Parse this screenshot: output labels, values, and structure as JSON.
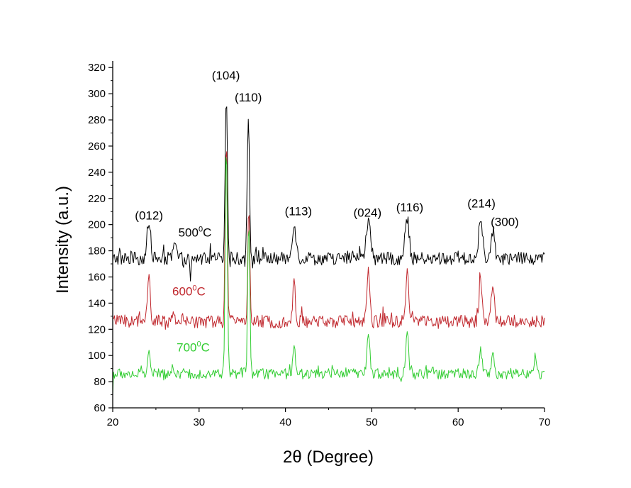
{
  "chart_data": {
    "type": "line",
    "title": "",
    "xlabel": "2θ (Degree)",
    "ylabel": "Intensity (a.u.)",
    "xlim": [
      20,
      70
    ],
    "ylim": [
      60,
      325
    ],
    "xticks": [
      20,
      30,
      40,
      50,
      60,
      70
    ],
    "yticks": [
      60,
      80,
      100,
      120,
      140,
      160,
      180,
      200,
      220,
      240,
      260,
      280,
      300,
      320
    ],
    "grid": false,
    "legend": "none",
    "peak_annotations": [
      {
        "text": "(012)",
        "x": 24.2,
        "y": 204
      },
      {
        "text": "(104)",
        "x": 33.1,
        "y": 311
      },
      {
        "text": "(110)",
        "x": 35.7,
        "y": 294
      },
      {
        "text": "(113)",
        "x": 41.5,
        "y": 207
      },
      {
        "text": "(024)",
        "x": 49.5,
        "y": 206
      },
      {
        "text": "(116)",
        "x": 54.4,
        "y": 210
      },
      {
        "text": "(214)",
        "x": 62.7,
        "y": 213
      },
      {
        "text": "(300)",
        "x": 65.4,
        "y": 199
      }
    ],
    "series": [
      {
        "name": "500⁰C",
        "label_base": "500",
        "label_sup": "0",
        "label_unit": "C",
        "label_pos": {
          "x": 27.6,
          "y": 191
        },
        "color": "#000000",
        "baseline": 174,
        "noise": 5,
        "start": [
          20,
          172
        ],
        "peaks": [
          {
            "x": 24.2,
            "h": 24,
            "w": 0.22
          },
          {
            "x": 27.2,
            "h": 11,
            "w": 0.18
          },
          {
            "x": 33.15,
            "h": 126,
            "w": 0.13
          },
          {
            "x": 35.7,
            "h": 111,
            "w": 0.13
          },
          {
            "x": 41.0,
            "h": 27,
            "w": 0.22
          },
          {
            "x": 49.6,
            "h": 28,
            "w": 0.25
          },
          {
            "x": 54.1,
            "h": 31,
            "w": 0.22
          },
          {
            "x": 62.6,
            "h": 30,
            "w": 0.22
          },
          {
            "x": 64.0,
            "h": 22,
            "w": 0.22
          },
          {
            "x": 29.0,
            "h": -17,
            "w": 0.08
          }
        ]
      },
      {
        "name": "600⁰C",
        "label_base": "600",
        "label_sup": "0",
        "label_unit": "C",
        "label_pos": {
          "x": 26.9,
          "y": 146
        },
        "color": "#c0272d",
        "baseline": 126,
        "noise": 5,
        "start": [
          20,
          128
        ],
        "peaks": [
          {
            "x": 24.2,
            "h": 40,
            "w": 0.14
          },
          {
            "x": 33.15,
            "h": 140,
            "w": 0.12
          },
          {
            "x": 35.75,
            "h": 83,
            "w": 0.12
          },
          {
            "x": 41.0,
            "h": 31,
            "w": 0.14
          },
          {
            "x": 49.6,
            "h": 43,
            "w": 0.16
          },
          {
            "x": 54.1,
            "h": 41,
            "w": 0.16
          },
          {
            "x": 62.6,
            "h": 34,
            "w": 0.16
          },
          {
            "x": 64.0,
            "h": 29,
            "w": 0.18
          }
        ]
      },
      {
        "name": "700⁰C",
        "label_base": "700",
        "label_sup": "0",
        "label_unit": "C",
        "label_pos": {
          "x": 27.4,
          "y": 103
        },
        "color": "#32cd32",
        "baseline": 86,
        "noise": 4,
        "start": [
          20,
          70
        ],
        "peaks": [
          {
            "x": 24.2,
            "h": 17,
            "w": 0.15
          },
          {
            "x": 33.15,
            "h": 178,
            "w": 0.12
          },
          {
            "x": 35.75,
            "h": 116,
            "w": 0.12
          },
          {
            "x": 41.0,
            "h": 20,
            "w": 0.15
          },
          {
            "x": 49.6,
            "h": 32,
            "w": 0.16
          },
          {
            "x": 54.1,
            "h": 30,
            "w": 0.16
          },
          {
            "x": 62.6,
            "h": 18,
            "w": 0.18
          },
          {
            "x": 64.0,
            "h": 15,
            "w": 0.18
          },
          {
            "x": 68.9,
            "h": 13,
            "w": 0.15
          }
        ]
      }
    ]
  }
}
